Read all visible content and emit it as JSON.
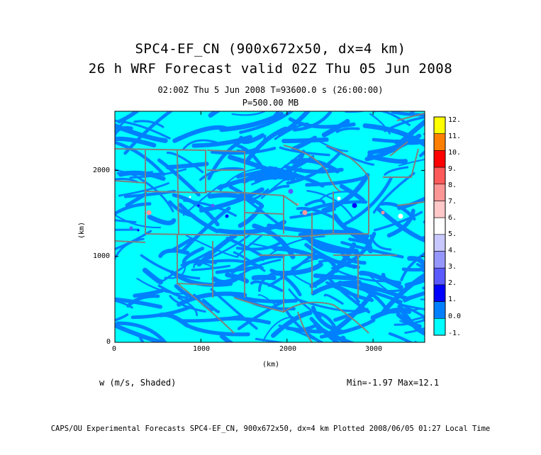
{
  "title_line1": "SPC4-EF_CN (900x672x50, dx=4 km)",
  "title_line2": "26 h WRF Forecast valid 02Z Thu 05 Jun 2008",
  "subtitle_time": "02:00Z Thu  5 Jun 2008     T=93600.0 s (26:00:00)",
  "subtitle_level": "P=500.00 MB",
  "variable_label": "w (m/s, Shaded)",
  "min_max_label": "Min=-1.97 Max=12.1",
  "footer": "CAPS/OU Experimental Forecasts  SPC4-EF_CN, 900x672x50, dx=4 km  Plotted 2008/06/05 01:27 Local Time",
  "colorbar": {
    "labels": [
      "12.",
      "11.",
      "10.",
      "9.",
      "8.",
      "7.",
      "6.",
      "5.",
      "4.",
      "3.",
      "2.",
      "1.",
      "0.0",
      "-1."
    ],
    "colors": [
      "#ffff00",
      "#ff8000",
      "#ff0000",
      "#ff5a5a",
      "#ff9696",
      "#ffc8c8",
      "#ffffff",
      "#c8c8ff",
      "#9696ff",
      "#5a5aff",
      "#0000ff",
      "#0080ff",
      "#00ffff"
    ]
  },
  "chart_data": {
    "type": "heatmap",
    "title": "26 h WRF Forecast valid 02Z Thu 05 Jun 2008",
    "xlabel": "(km)",
    "ylabel": "(km)",
    "xlim": [
      0,
      3600
    ],
    "ylim": [
      0,
      2688
    ],
    "xticks": [
      "0",
      "1000",
      "2000",
      "3000"
    ],
    "yticks": [
      "0",
      "1000",
      "2000"
    ],
    "field": "w (m/s, Shaded)",
    "min": -1.97,
    "max": 12.1,
    "levels": [
      -1,
      0,
      1,
      2,
      3,
      4,
      5,
      6,
      7,
      8,
      9,
      10,
      11,
      12
    ],
    "background_color": "#00ffff",
    "dominant_color": "#0080ff",
    "boundary_color": "#808080"
  }
}
